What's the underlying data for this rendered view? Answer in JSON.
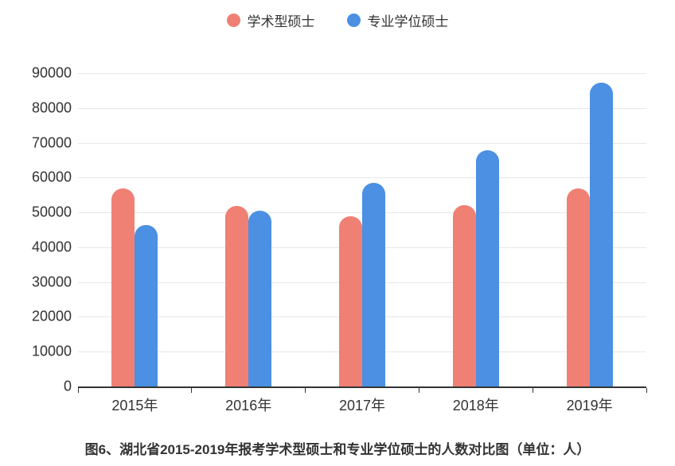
{
  "chart_data": {
    "type": "bar",
    "title": "图6、湖北省2015-2019年报考学术型硕士和专业学位硕士的人数对比图（单位：人）",
    "categories": [
      "2015年",
      "2016年",
      "2017年",
      "2018年",
      "2019年"
    ],
    "series": [
      {
        "name": "学术型硕士",
        "color": "#F08074",
        "values": [
          56800,
          51900,
          48900,
          52100,
          56800
        ]
      },
      {
        "name": "专业学位硕士",
        "color": "#4B90E2",
        "values": [
          46300,
          50600,
          58400,
          67800,
          87200
        ]
      }
    ],
    "xlabel": "",
    "ylabel": "",
    "ylim": [
      0,
      90000
    ],
    "ytick_step": 10000,
    "yticks": [
      "90000",
      "80000",
      "70000",
      "60000",
      "50000",
      "40000",
      "30000",
      "20000",
      "10000",
      "0"
    ],
    "grid": true,
    "legend_position": "top",
    "unit": "人"
  },
  "legend": {
    "items": [
      {
        "label": "学术型硕士",
        "color": "#F08074"
      },
      {
        "label": "专业学位硕士",
        "color": "#4B90E2"
      }
    ]
  },
  "caption": "图6、湖北省2015-2019年报考学术型硕士和专业学位硕士的人数对比图（单位：人）",
  "colors": {
    "academic": "#F08074",
    "professional": "#4B90E2",
    "axis": "#333333",
    "grid": "#e7e7e7"
  }
}
